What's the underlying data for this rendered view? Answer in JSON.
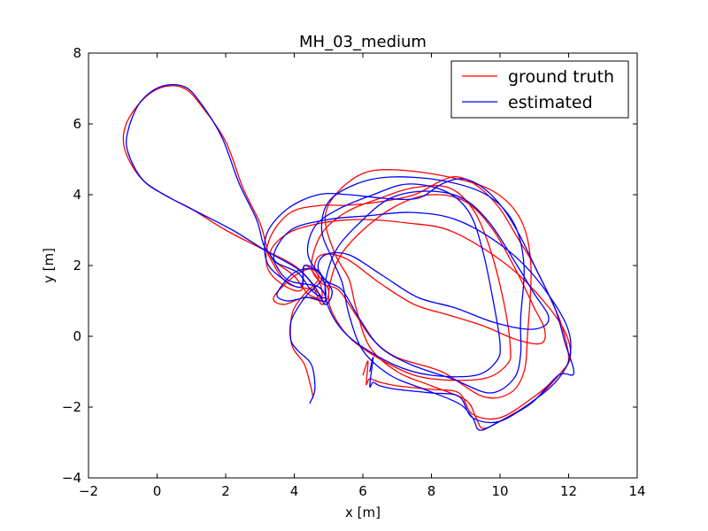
{
  "chart_data": {
    "type": "line",
    "title": "MH_03_medium",
    "xlabel": "x [m]",
    "ylabel": "y [m]",
    "xlim": [
      -2,
      14
    ],
    "ylim": [
      -4,
      8
    ],
    "xticks": [
      -2,
      0,
      2,
      4,
      6,
      8,
      10,
      12,
      14
    ],
    "yticks": [
      -4,
      -2,
      0,
      2,
      4,
      6,
      8
    ],
    "grid": false,
    "legend_position": "top-right",
    "series": [
      {
        "name": "ground truth",
        "color": "#ff0000",
        "points": [
          [
            4.55,
            -1.75
          ],
          [
            4.5,
            -1.5
          ],
          [
            4.3,
            -0.8
          ],
          [
            4.0,
            -0.4
          ],
          [
            3.9,
            -0.1
          ],
          [
            3.9,
            0.4
          ],
          [
            4.0,
            0.8
          ],
          [
            4.3,
            1.2
          ],
          [
            4.7,
            1.6
          ],
          [
            4.5,
            1.9
          ],
          [
            4.0,
            1.7
          ],
          [
            3.4,
            1.1
          ],
          [
            3.7,
            0.9
          ],
          [
            4.3,
            1.1
          ],
          [
            4.8,
            1.0
          ],
          [
            4.6,
            1.3
          ],
          [
            3.8,
            1.5
          ],
          [
            3.3,
            2.2
          ],
          [
            3.2,
            2.5
          ],
          [
            3.0,
            3.2
          ],
          [
            2.5,
            4.2
          ],
          [
            2.0,
            5.5
          ],
          [
            1.3,
            6.5
          ],
          [
            0.8,
            7.0
          ],
          [
            0.2,
            7.05
          ],
          [
            -0.4,
            6.7
          ],
          [
            -0.9,
            6.0
          ],
          [
            -0.95,
            5.3
          ],
          [
            -0.5,
            4.5
          ],
          [
            0.2,
            4.0
          ],
          [
            1.0,
            3.6
          ],
          [
            2.0,
            3.0
          ],
          [
            3.0,
            2.5
          ],
          [
            4.0,
            2.0
          ],
          [
            4.5,
            1.5
          ],
          [
            4.8,
            0.9
          ],
          [
            5.0,
            1.3
          ],
          [
            4.6,
            1.9
          ],
          [
            4.8,
            2.3
          ],
          [
            5.5,
            2.2
          ],
          [
            6.5,
            1.5
          ],
          [
            7.5,
            0.9
          ],
          [
            8.5,
            0.6
          ],
          [
            9.5,
            0.3
          ],
          [
            10.5,
            -0.1
          ],
          [
            11.2,
            -0.2
          ],
          [
            11.3,
            0.2
          ],
          [
            11.0,
            0.8
          ],
          [
            10.5,
            1.8
          ],
          [
            9.8,
            3.0
          ],
          [
            9.0,
            3.8
          ],
          [
            8.0,
            4.0
          ],
          [
            7.0,
            3.7
          ],
          [
            6.0,
            3.0
          ],
          [
            5.3,
            2.2
          ],
          [
            5.0,
            1.2
          ],
          [
            5.2,
            0.5
          ],
          [
            5.8,
            -0.2
          ],
          [
            7.0,
            -0.9
          ],
          [
            8.0,
            -1.2
          ],
          [
            9.5,
            -1.2
          ],
          [
            10.2,
            -0.8
          ],
          [
            10.3,
            -0.3
          ],
          [
            10.1,
            1.0
          ],
          [
            9.7,
            2.5
          ],
          [
            9.2,
            3.6
          ],
          [
            8.5,
            4.2
          ],
          [
            7.5,
            4.2
          ],
          [
            6.5,
            3.9
          ],
          [
            5.5,
            3.5
          ],
          [
            4.8,
            2.9
          ],
          [
            4.5,
            2.0
          ],
          [
            4.8,
            1.5
          ],
          [
            5.3,
            1.3
          ],
          [
            5.8,
            0.6
          ],
          [
            6.3,
            -0.1
          ],
          [
            7.0,
            -0.6
          ],
          [
            8.3,
            -1.0
          ],
          [
            9.5,
            -1.7
          ],
          [
            10.3,
            -1.6
          ],
          [
            10.7,
            -1.0
          ],
          [
            10.8,
            0.0
          ],
          [
            10.9,
            2.0
          ],
          [
            10.6,
            3.3
          ],
          [
            9.8,
            4.1
          ],
          [
            8.5,
            4.5
          ],
          [
            7.0,
            4.7
          ],
          [
            6.0,
            4.6
          ],
          [
            5.2,
            4.0
          ],
          [
            4.9,
            3.3
          ],
          [
            5.2,
            2.3
          ],
          [
            5.6,
            1.6
          ],
          [
            5.8,
            0.8
          ],
          [
            6.2,
            -0.3
          ],
          [
            7.0,
            -1.0
          ],
          [
            8.0,
            -1.4
          ],
          [
            9.0,
            -1.8
          ],
          [
            9.3,
            -2.3
          ],
          [
            9.5,
            -2.6
          ],
          [
            10.0,
            -2.4
          ],
          [
            11.0,
            -1.8
          ],
          [
            11.8,
            -1.0
          ],
          [
            12.0,
            -0.6
          ],
          [
            11.8,
            0.3
          ],
          [
            11.5,
            1.0
          ],
          [
            11.0,
            2.0
          ],
          [
            10.5,
            2.8
          ],
          [
            10.0,
            3.6
          ],
          [
            9.4,
            4.2
          ],
          [
            8.8,
            4.5
          ],
          [
            8.3,
            4.4
          ],
          [
            7.5,
            4.0
          ],
          [
            6.5,
            3.8
          ],
          [
            5.5,
            3.7
          ],
          [
            4.8,
            3.7
          ],
          [
            3.9,
            3.5
          ],
          [
            3.3,
            2.8
          ],
          [
            3.2,
            2.0
          ],
          [
            3.6,
            1.5
          ],
          [
            4.2,
            1.3
          ],
          [
            4.3,
            2.0
          ],
          [
            4.7,
            1.6
          ],
          [
            4.8,
            1.1
          ],
          [
            4.4,
            1.2
          ],
          [
            4.0,
            1.7
          ],
          [
            3.3,
            2.3
          ],
          [
            3.8,
            2.9
          ],
          [
            4.8,
            3.2
          ],
          [
            6.0,
            3.3
          ],
          [
            7.3,
            3.2
          ],
          [
            8.5,
            3.0
          ],
          [
            9.8,
            2.3
          ],
          [
            10.8,
            1.5
          ],
          [
            11.8,
            0.3
          ],
          [
            12.05,
            -0.6
          ],
          [
            11.6,
            -1.2
          ],
          [
            11.0,
            -1.7
          ],
          [
            10.0,
            -2.3
          ],
          [
            9.2,
            -2.2
          ],
          [
            8.8,
            -1.6
          ],
          [
            8.0,
            -1.5
          ],
          [
            7.0,
            -1.4
          ],
          [
            6.5,
            -1.3
          ],
          [
            6.2,
            -1.2
          ],
          [
            6.1,
            -1.35
          ],
          [
            6.15,
            -0.7
          ],
          [
            6.0,
            -1.1
          ]
        ]
      },
      {
        "name": "estimated",
        "color": "#0000ff",
        "points": [
          [
            4.45,
            -1.9
          ],
          [
            4.6,
            -1.5
          ],
          [
            4.5,
            -0.8
          ],
          [
            4.1,
            -0.4
          ],
          [
            3.9,
            -0.1
          ],
          [
            3.9,
            0.4
          ],
          [
            4.1,
            0.8
          ],
          [
            4.4,
            1.2
          ],
          [
            4.8,
            1.6
          ],
          [
            4.6,
            1.9
          ],
          [
            4.0,
            1.8
          ],
          [
            3.5,
            1.2
          ],
          [
            3.8,
            1.0
          ],
          [
            4.4,
            1.1
          ],
          [
            4.9,
            1.0
          ],
          [
            4.7,
            1.4
          ],
          [
            3.8,
            1.6
          ],
          [
            3.3,
            2.3
          ],
          [
            3.1,
            2.6
          ],
          [
            2.9,
            3.3
          ],
          [
            2.4,
            4.3
          ],
          [
            1.9,
            5.6
          ],
          [
            1.3,
            6.55
          ],
          [
            0.8,
            7.05
          ],
          [
            0.1,
            7.05
          ],
          [
            -0.5,
            6.6
          ],
          [
            -0.85,
            5.8
          ],
          [
            -0.85,
            5.2
          ],
          [
            -0.4,
            4.4
          ],
          [
            0.4,
            3.9
          ],
          [
            1.2,
            3.5
          ],
          [
            2.2,
            3.0
          ],
          [
            3.2,
            2.4
          ],
          [
            4.1,
            1.9
          ],
          [
            4.6,
            1.4
          ],
          [
            4.9,
            0.9
          ],
          [
            5.1,
            1.3
          ],
          [
            4.7,
            1.9
          ],
          [
            4.9,
            2.3
          ],
          [
            5.6,
            2.3
          ],
          [
            6.6,
            1.7
          ],
          [
            7.6,
            1.1
          ],
          [
            8.7,
            0.8
          ],
          [
            9.8,
            0.4
          ],
          [
            10.8,
            0.2
          ],
          [
            11.3,
            0.3
          ],
          [
            11.4,
            0.6
          ],
          [
            11.0,
            1.2
          ],
          [
            10.5,
            2.0
          ],
          [
            9.7,
            3.2
          ],
          [
            8.9,
            3.9
          ],
          [
            7.9,
            4.1
          ],
          [
            6.8,
            3.9
          ],
          [
            5.9,
            3.2
          ],
          [
            5.2,
            2.4
          ],
          [
            4.9,
            1.4
          ],
          [
            5.1,
            0.6
          ],
          [
            5.7,
            -0.1
          ],
          [
            6.9,
            -0.8
          ],
          [
            8.0,
            -1.1
          ],
          [
            9.3,
            -1.1
          ],
          [
            9.9,
            -0.7
          ],
          [
            10.0,
            -0.2
          ],
          [
            9.8,
            1.0
          ],
          [
            9.5,
            2.4
          ],
          [
            9.1,
            3.5
          ],
          [
            8.4,
            4.1
          ],
          [
            7.3,
            4.3
          ],
          [
            6.3,
            4.0
          ],
          [
            5.3,
            3.6
          ],
          [
            4.6,
            3.1
          ],
          [
            4.4,
            2.3
          ],
          [
            4.9,
            1.6
          ],
          [
            5.4,
            1.3
          ],
          [
            5.9,
            0.5
          ],
          [
            6.5,
            -0.3
          ],
          [
            7.4,
            -0.8
          ],
          [
            8.6,
            -1.2
          ],
          [
            9.7,
            -1.6
          ],
          [
            10.4,
            -1.2
          ],
          [
            10.6,
            -0.5
          ],
          [
            10.6,
            0.5
          ],
          [
            10.7,
            2.0
          ],
          [
            10.4,
            3.2
          ],
          [
            9.6,
            4.0
          ],
          [
            8.3,
            4.4
          ],
          [
            6.8,
            4.5
          ],
          [
            5.8,
            4.3
          ],
          [
            5.0,
            3.8
          ],
          [
            4.8,
            3.0
          ],
          [
            5.1,
            2.2
          ],
          [
            5.4,
            1.5
          ],
          [
            5.6,
            0.6
          ],
          [
            6.0,
            -0.4
          ],
          [
            6.8,
            -1.1
          ],
          [
            7.8,
            -1.5
          ],
          [
            8.8,
            -1.9
          ],
          [
            9.2,
            -2.3
          ],
          [
            9.4,
            -2.65
          ],
          [
            9.9,
            -2.45
          ],
          [
            10.9,
            -1.9
          ],
          [
            11.7,
            -1.1
          ],
          [
            12.15,
            -1.05
          ],
          [
            11.9,
            -0.2
          ],
          [
            11.6,
            0.8
          ],
          [
            11.1,
            1.8
          ],
          [
            10.6,
            2.8
          ],
          [
            10.1,
            3.6
          ],
          [
            9.5,
            4.2
          ],
          [
            8.9,
            4.45
          ],
          [
            8.3,
            4.3
          ],
          [
            7.6,
            3.9
          ],
          [
            6.6,
            3.9
          ],
          [
            5.6,
            4.0
          ],
          [
            4.7,
            4.0
          ],
          [
            3.8,
            3.6
          ],
          [
            3.2,
            2.9
          ],
          [
            3.2,
            2.1
          ],
          [
            3.7,
            1.6
          ],
          [
            4.2,
            1.4
          ],
          [
            4.3,
            2.0
          ],
          [
            4.8,
            1.7
          ],
          [
            4.9,
            1.1
          ],
          [
            4.5,
            1.3
          ],
          [
            4.1,
            1.8
          ],
          [
            3.4,
            2.2
          ],
          [
            3.9,
            3.0
          ],
          [
            5.0,
            3.3
          ],
          [
            6.1,
            3.4
          ],
          [
            7.4,
            3.5
          ],
          [
            8.7,
            3.3
          ],
          [
            10.0,
            2.6
          ],
          [
            11.0,
            1.7
          ],
          [
            11.9,
            0.4
          ],
          [
            12.05,
            -0.5
          ],
          [
            11.7,
            -1.2
          ],
          [
            11.0,
            -1.8
          ],
          [
            10.0,
            -2.4
          ],
          [
            9.2,
            -2.3
          ],
          [
            8.8,
            -1.7
          ],
          [
            8.0,
            -1.6
          ],
          [
            7.0,
            -1.5
          ],
          [
            6.5,
            -1.4
          ],
          [
            6.3,
            -1.3
          ],
          [
            6.2,
            -1.4
          ],
          [
            6.3,
            -0.6
          ],
          [
            6.2,
            -1.0
          ]
        ]
      }
    ]
  }
}
